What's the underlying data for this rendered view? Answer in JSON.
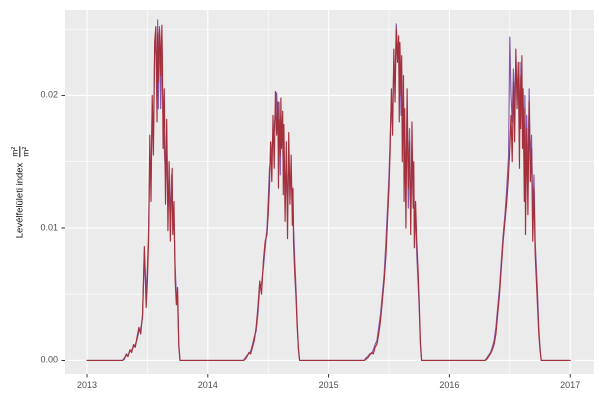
{
  "figure": {
    "background": "#ffffff",
    "panel_background": "#ebebeb",
    "grid_color": "#ffffff",
    "tick_color": "#333333",
    "tick_text_color": "#4d4d4d"
  },
  "chart_data": {
    "type": "line",
    "title": "",
    "xlabel": "",
    "ylabel": {
      "prefix": "Levélfelületi index",
      "unit_numerator": "m²",
      "unit_denominator": "m²"
    },
    "legend": "none",
    "grid": "on",
    "x_domain": [
      2012.818,
      2017.197
    ],
    "y_domain": [
      -0.00102,
      0.02645
    ],
    "x_ticks": [
      {
        "v": 2013,
        "label": "2013"
      },
      {
        "v": 2014,
        "label": "2014"
      },
      {
        "v": 2015,
        "label": "2015"
      },
      {
        "v": 2016,
        "label": "2016"
      },
      {
        "v": 2017,
        "label": "2017"
      }
    ],
    "y_ticks": [
      {
        "v": 0,
        "label": "0.00"
      },
      {
        "v": 0.01,
        "label": "0.01"
      },
      {
        "v": 0.02,
        "label": "0.02"
      }
    ],
    "x_minor": [
      2013.5,
      2014.5,
      2015.5,
      2016.5
    ],
    "y_minor": [
      0.005,
      0.015,
      0.025
    ],
    "years": [
      2013,
      2014,
      2015,
      2016
    ],
    "season_offsets": [
      0,
      0.15,
      0.295,
      0.31,
      0.325,
      0.34,
      0.355,
      0.37,
      0.385,
      0.4,
      0.415,
      0.43,
      0.445,
      0.46,
      0.475,
      0.49,
      0.5,
      0.51,
      0.52,
      0.53,
      0.54,
      0.55,
      0.56,
      0.57,
      0.58,
      0.585,
      0.59,
      0.6,
      0.605,
      0.61,
      0.62,
      0.625,
      0.63,
      0.64,
      0.65,
      0.66,
      0.67,
      0.68,
      0.69,
      0.7,
      0.705,
      0.71,
      0.72,
      0.73,
      0.74,
      0.75,
      0.76,
      0.77,
      0.79
    ],
    "series": [
      {
        "name": "series-purple",
        "color": "#8456a8",
        "seasons": {
          "2013": [
            0,
            0,
            0,
            0.0001,
            0.0005,
            0.0004,
            0.0007,
            0.0008,
            0.001,
            0.0012,
            0.0016,
            0.0022,
            0.0024,
            0.0032,
            0.0082,
            0.005,
            0.007,
            0.01,
            0.015,
            0.014,
            0.019,
            0.017,
            0.023,
            0.0245,
            0.02,
            0.0257,
            0.019,
            0.0252,
            0.023,
            0.019,
            0.0245,
            0.02,
            0.0185,
            0.016,
            0.014,
            0.0165,
            0.012,
            0.0135,
            0.0105,
            0.014,
            0.013,
            0.011,
            0.0105,
            0.007,
            0.005,
            0.0045,
            0.001,
            0,
            0
          ],
          "2014": [
            0,
            0,
            0,
            0.0002,
            0.0004,
            0.0005,
            0.0007,
            0.0012,
            0.0018,
            0.0022,
            0.0035,
            0.0055,
            0.0058,
            0.007,
            0.0085,
            0.01,
            0.012,
            0.0145,
            0.015,
            0.016,
            0.017,
            0.0175,
            0.019,
            0.0202,
            0.0175,
            0.016,
            0.0195,
            0.014,
            0.0185,
            0.0175,
            0.0165,
            0.015,
            0.016,
            0.013,
            0.0145,
            0.011,
            0.015,
            0.0135,
            0.014,
            0.0115,
            0.012,
            0.01,
            0.0075,
            0.0055,
            0.003,
            0.0008,
            0,
            0,
            0
          ],
          "2015": [
            0,
            0,
            0,
            0.0002,
            0.0003,
            0.0005,
            0.0005,
            0.0008,
            0.0012,
            0.0015,
            0.0025,
            0.0035,
            0.005,
            0.0065,
            0.009,
            0.012,
            0.014,
            0.017,
            0.0195,
            0.0185,
            0.0225,
            0.021,
            0.0254,
            0.0235,
            0.024,
            0.02,
            0.023,
            0.0185,
            0.022,
            0.017,
            0.02,
            0.0145,
            0.018,
            0.0125,
            0.0195,
            0.0115,
            0.0175,
            0.0105,
            0.016,
            0.012,
            0.014,
            0.01,
            0.011,
            0.008,
            0.006,
            0.004,
            0.0012,
            0,
            0
          ],
          "2016": [
            0,
            0,
            0,
            0.0002,
            0.0004,
            0.0006,
            0.001,
            0.0015,
            0.0025,
            0.004,
            0.0055,
            0.0075,
            0.0095,
            0.011,
            0.013,
            0.0155,
            0.0244,
            0.02,
            0.018,
            0.022,
            0.019,
            0.0228,
            0.0205,
            0.0215,
            0.017,
            0.0225,
            0.0185,
            0.0215,
            0.0175,
            0.0195,
            0.014,
            0.02,
            0.012,
            0.0185,
            0.013,
            0.0205,
            0.015,
            0.017,
            0.011,
            0.014,
            0.0115,
            0.009,
            0.007,
            0.005,
            0.0025,
            0.001,
            0,
            0,
            0
          ]
        }
      },
      {
        "name": "series-red",
        "color": "#a4303c",
        "seasons": {
          "2013": [
            0,
            0,
            0,
            0.0002,
            0.0004,
            0.0003,
            0.0008,
            0.0006,
            0.0012,
            0.001,
            0.0018,
            0.0025,
            0.002,
            0.0035,
            0.0086,
            0.004,
            0.006,
            0.009,
            0.017,
            0.012,
            0.02,
            0.0155,
            0.024,
            0.0252,
            0.018,
            0.0247,
            0.021,
            0.025,
            0.0242,
            0.0215,
            0.0253,
            0.022,
            0.016,
            0.0205,
            0.0118,
            0.0182,
            0.0098,
            0.015,
            0.009,
            0.0128,
            0.0145,
            0.0095,
            0.012,
            0.006,
            0.0042,
            0.0055,
            0.0012,
            0,
            0
          ],
          "2014": [
            0,
            0,
            0,
            0.0001,
            0.0003,
            0.0006,
            0.0005,
            0.001,
            0.0015,
            0.0025,
            0.004,
            0.006,
            0.005,
            0.0075,
            0.009,
            0.0095,
            0.011,
            0.013,
            0.0165,
            0.0135,
            0.0185,
            0.0145,
            0.0203,
            0.017,
            0.0195,
            0.013,
            0.0182,
            0.0155,
            0.0198,
            0.016,
            0.0188,
            0.0125,
            0.0178,
            0.0105,
            0.0165,
            0.0092,
            0.0172,
            0.0118,
            0.0155,
            0.0102,
            0.013,
            0.0088,
            0.0065,
            0.0048,
            0.0025,
            0.001,
            0,
            0,
            0
          ],
          "2015": [
            0,
            0,
            0,
            0.0001,
            0.0002,
            0.0004,
            0.0006,
            0.0005,
            0.001,
            0.0012,
            0.002,
            0.003,
            0.0045,
            0.006,
            0.008,
            0.011,
            0.013,
            0.016,
            0.0205,
            0.017,
            0.0235,
            0.0195,
            0.025,
            0.0225,
            0.0245,
            0.018,
            0.024,
            0.02,
            0.023,
            0.015,
            0.0215,
            0.012,
            0.019,
            0.01,
            0.0205,
            0.013,
            0.0165,
            0.0095,
            0.018,
            0.0115,
            0.015,
            0.0085,
            0.012,
            0.009,
            0.007,
            0.0045,
            0.0015,
            0,
            0
          ],
          "2016": [
            0,
            0,
            0,
            0.0001,
            0.0003,
            0.0005,
            0.0008,
            0.0012,
            0.002,
            0.0035,
            0.005,
            0.007,
            0.009,
            0.0105,
            0.012,
            0.014,
            0.016,
            0.0185,
            0.015,
            0.021,
            0.0165,
            0.0235,
            0.019,
            0.0225,
            0.0145,
            0.0215,
            0.0175,
            0.023,
            0.016,
            0.0205,
            0.012,
            0.019,
            0.0095,
            0.0175,
            0.011,
            0.0195,
            0.0135,
            0.016,
            0.009,
            0.013,
            0.0105,
            0.008,
            0.006,
            0.004,
            0.002,
            0.0008,
            0,
            0,
            0
          ]
        }
      }
    ],
    "end_point": {
      "x": 2017.0,
      "y": 0
    }
  }
}
